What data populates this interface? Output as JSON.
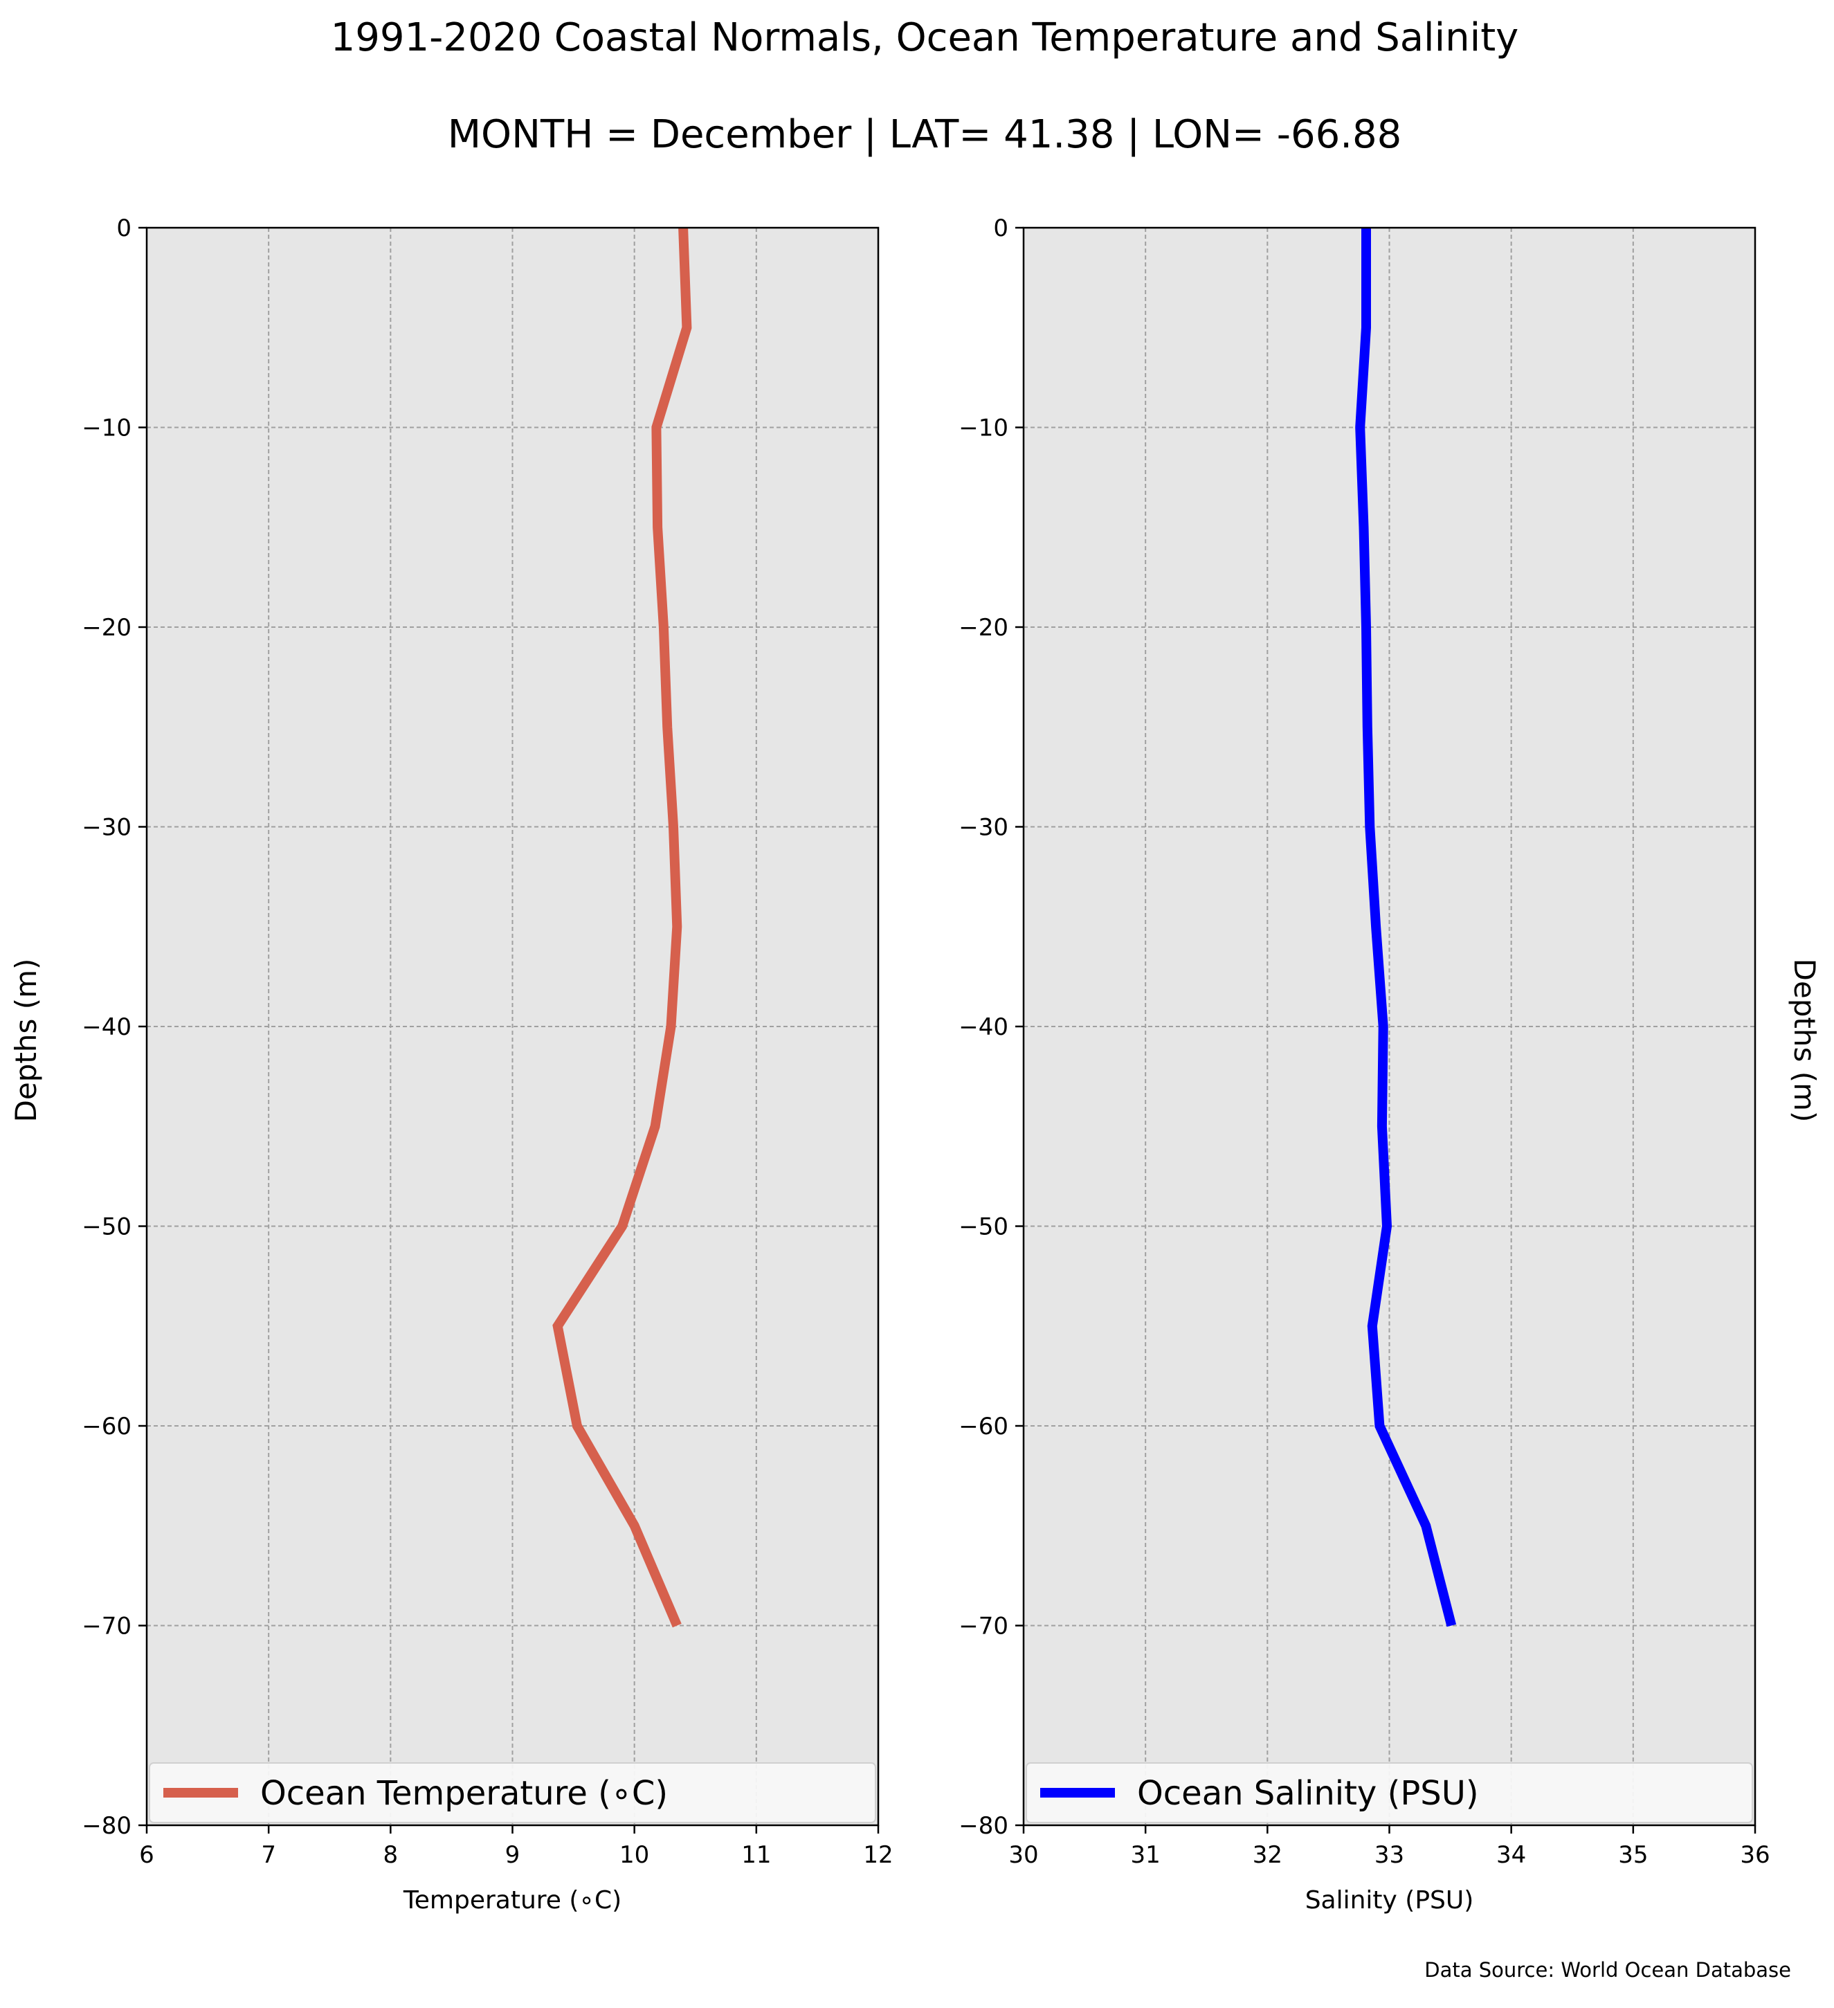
{
  "figure": {
    "title_line1": "1991-2020 Coastal Normals, Ocean Temperature and Salinity",
    "title_line2": "MONTH = December | LAT= 41.38 | LON= -66.88",
    "source": "Data Source: World Ocean Database"
  },
  "chart_data": [
    {
      "type": "line",
      "xlabel": "Temperature (∘C)",
      "ylabel": "Depths (m)",
      "xlim": [
        6,
        12
      ],
      "ylim": [
        -80,
        0
      ],
      "xticks": [
        "6",
        "7",
        "8",
        "9",
        "10",
        "11",
        "12"
      ],
      "yticks": [
        "0",
        "−10",
        "−20",
        "−30",
        "−40",
        "−50",
        "−60",
        "−70",
        "−80"
      ],
      "grid": true,
      "legend": "bottom",
      "series": [
        {
          "name": "Ocean Temperature (∘C)",
          "color": "#d6604d",
          "depths": [
            0,
            -5,
            -10,
            -15,
            -20,
            -25,
            -30,
            -35,
            -40,
            -45,
            -50,
            -55,
            -60,
            -65,
            -70
          ],
          "values": [
            10.4,
            10.43,
            10.18,
            10.19,
            10.24,
            10.27,
            10.32,
            10.35,
            10.3,
            10.17,
            9.9,
            9.37,
            9.53,
            10.0,
            10.35
          ]
        }
      ]
    },
    {
      "type": "line",
      "xlabel": "Salinity (PSU)",
      "ylabel": "Depths (m)",
      "xlim": [
        30,
        36
      ],
      "ylim": [
        -80,
        0
      ],
      "xticks": [
        "30",
        "31",
        "32",
        "33",
        "34",
        "35",
        "36"
      ],
      "yticks": [
        "0",
        "−10",
        "−20",
        "−30",
        "−40",
        "−50",
        "−60",
        "−70",
        "−80"
      ],
      "grid": true,
      "legend": "bottom",
      "series": [
        {
          "name": "Ocean Salinity (PSU)",
          "color": "#0000ff",
          "depths": [
            0,
            -5,
            -10,
            -15,
            -20,
            -25,
            -30,
            -35,
            -40,
            -45,
            -50,
            -55,
            -60,
            -65,
            -70
          ],
          "values": [
            32.81,
            32.81,
            32.76,
            32.79,
            32.81,
            32.82,
            32.84,
            32.89,
            32.95,
            32.94,
            32.98,
            32.86,
            32.92,
            33.3,
            33.51
          ]
        }
      ]
    }
  ]
}
